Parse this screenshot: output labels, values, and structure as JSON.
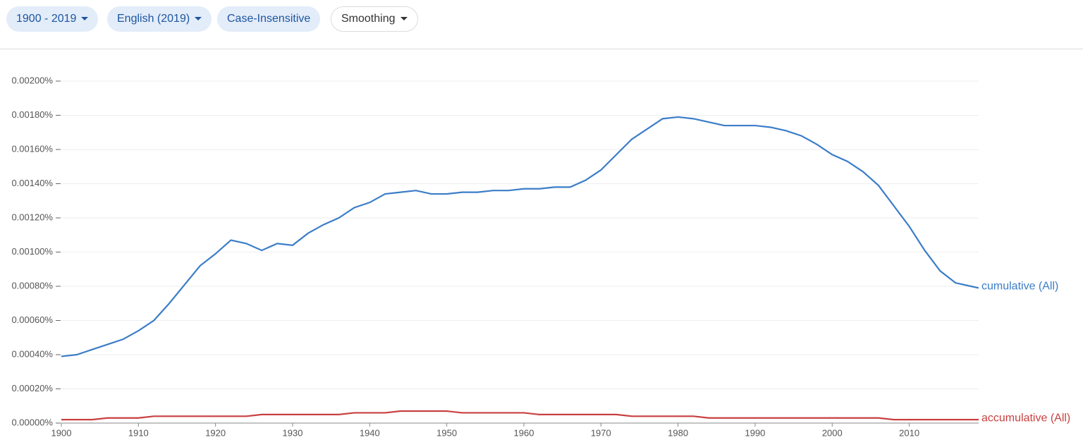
{
  "toolbar": [
    "1900 - 2019",
    "English (2019)",
    "Case-Insensitive",
    "Smoothing"
  ],
  "chart_data": {
    "type": "line",
    "x": [
      1900,
      1902,
      1904,
      1906,
      1908,
      1910,
      1912,
      1914,
      1916,
      1918,
      1920,
      1922,
      1924,
      1926,
      1928,
      1930,
      1932,
      1934,
      1936,
      1938,
      1940,
      1942,
      1944,
      1946,
      1948,
      1950,
      1952,
      1954,
      1956,
      1958,
      1960,
      1962,
      1964,
      1966,
      1968,
      1970,
      1972,
      1974,
      1976,
      1978,
      1980,
      1982,
      1984,
      1986,
      1988,
      1990,
      1992,
      1994,
      1996,
      1998,
      2000,
      2002,
      2004,
      2006,
      2008,
      2010,
      2012,
      2014,
      2016,
      2018,
      2019
    ],
    "series": [
      {
        "name": "cumulative (All)",
        "color": "#3b7dc8",
        "values": [
          0.00039,
          0.0004,
          0.00043,
          0.00046,
          0.00049,
          0.00054,
          0.0006,
          0.0007,
          0.00081,
          0.00092,
          0.00099,
          0.00107,
          0.00105,
          0.00101,
          0.00105,
          0.00104,
          0.00111,
          0.00116,
          0.0012,
          0.00126,
          0.00129,
          0.00134,
          0.00135,
          0.00136,
          0.00134,
          0.00134,
          0.00135,
          0.00135,
          0.00136,
          0.00136,
          0.00137,
          0.00137,
          0.00138,
          0.00138,
          0.00142,
          0.00148,
          0.00157,
          0.00166,
          0.00172,
          0.00178,
          0.00179,
          0.00178,
          0.00176,
          0.00174,
          0.00174,
          0.00174,
          0.00173,
          0.00171,
          0.00168,
          0.00163,
          0.00157,
          0.00153,
          0.00147,
          0.00139,
          0.00127,
          0.00115,
          0.00101,
          0.00089,
          0.00082,
          0.0008,
          0.00079
        ]
      },
      {
        "name": "accumulative (All)",
        "color": "#c94040",
        "values": [
          2e-05,
          2e-05,
          2e-05,
          3e-05,
          3e-05,
          3e-05,
          4e-05,
          4e-05,
          4e-05,
          4e-05,
          4e-05,
          4e-05,
          4e-05,
          5e-05,
          5e-05,
          5e-05,
          5e-05,
          5e-05,
          5e-05,
          6e-05,
          6e-05,
          6e-05,
          7e-05,
          7e-05,
          7e-05,
          7e-05,
          6e-05,
          6e-05,
          6e-05,
          6e-05,
          6e-05,
          5e-05,
          5e-05,
          5e-05,
          5e-05,
          5e-05,
          5e-05,
          4e-05,
          4e-05,
          4e-05,
          4e-05,
          4e-05,
          3e-05,
          3e-05,
          3e-05,
          3e-05,
          3e-05,
          3e-05,
          3e-05,
          3e-05,
          3e-05,
          3e-05,
          3e-05,
          3e-05,
          2e-05,
          2e-05,
          2e-05,
          2e-05,
          2e-05,
          2e-05,
          2e-05
        ]
      }
    ],
    "xlim": [
      1900,
      2019
    ],
    "xticks": [
      1900,
      1910,
      1920,
      1930,
      1940,
      1950,
      1960,
      1970,
      1980,
      1990,
      2000,
      2010
    ],
    "ylim": [
      0,
      0.002
    ],
    "yticks": [
      {
        "value": 0,
        "label": "0.00000%"
      },
      {
        "value": 0.0002,
        "label": "0.00020%"
      },
      {
        "value": 0.0004,
        "label": "0.00040%"
      },
      {
        "value": 0.0006,
        "label": "0.00060%"
      },
      {
        "value": 0.0008,
        "label": "0.00080%"
      },
      {
        "value": 0.001,
        "label": "0.00100%"
      },
      {
        "value": 0.0012,
        "label": "0.00120%"
      },
      {
        "value": 0.0014,
        "label": "0.00140%"
      },
      {
        "value": 0.0016,
        "label": "0.00160%"
      },
      {
        "value": 0.0018,
        "label": "0.00180%"
      },
      {
        "value": 0.002,
        "label": "0.00200%"
      }
    ],
    "grid": true
  }
}
